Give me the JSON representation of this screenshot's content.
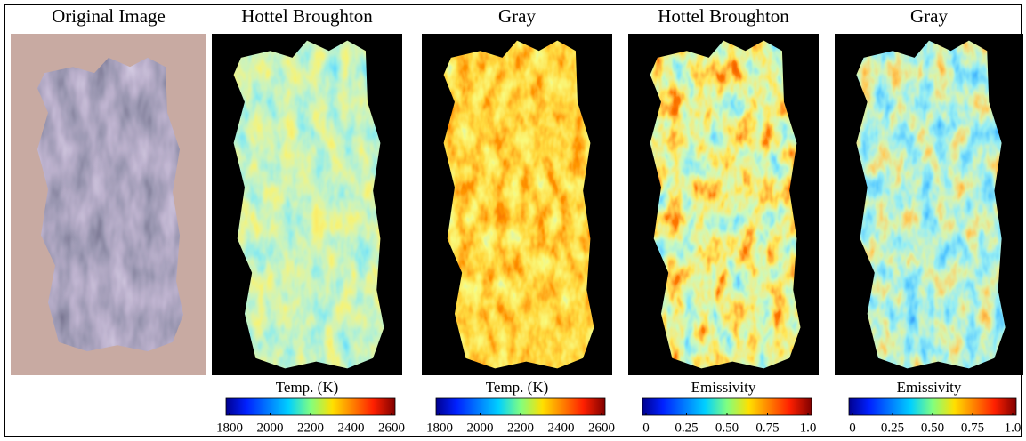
{
  "panels": [
    {
      "title": "Original Image"
    },
    {
      "title": "Hottel Broughton",
      "colorbar": {
        "label": "Temp. (K)",
        "ticks": [
          "1800",
          "2000",
          "2200",
          "2400",
          "2600"
        ]
      }
    },
    {
      "title": "Gray",
      "colorbar": {
        "label": "Temp. (K)",
        "ticks": [
          "1800",
          "2000",
          "2200",
          "2400",
          "2600"
        ]
      }
    },
    {
      "title": "Hottel Broughton",
      "colorbar": {
        "label": "Emissivity",
        "ticks": [
          "0",
          "0.25",
          "0.50",
          "0.75",
          "1.0"
        ]
      }
    },
    {
      "title": "Gray",
      "colorbar": {
        "label": "Emissivity",
        "ticks": [
          "0",
          "0.25",
          "0.50",
          "0.75",
          "1.0"
        ]
      }
    }
  ]
}
